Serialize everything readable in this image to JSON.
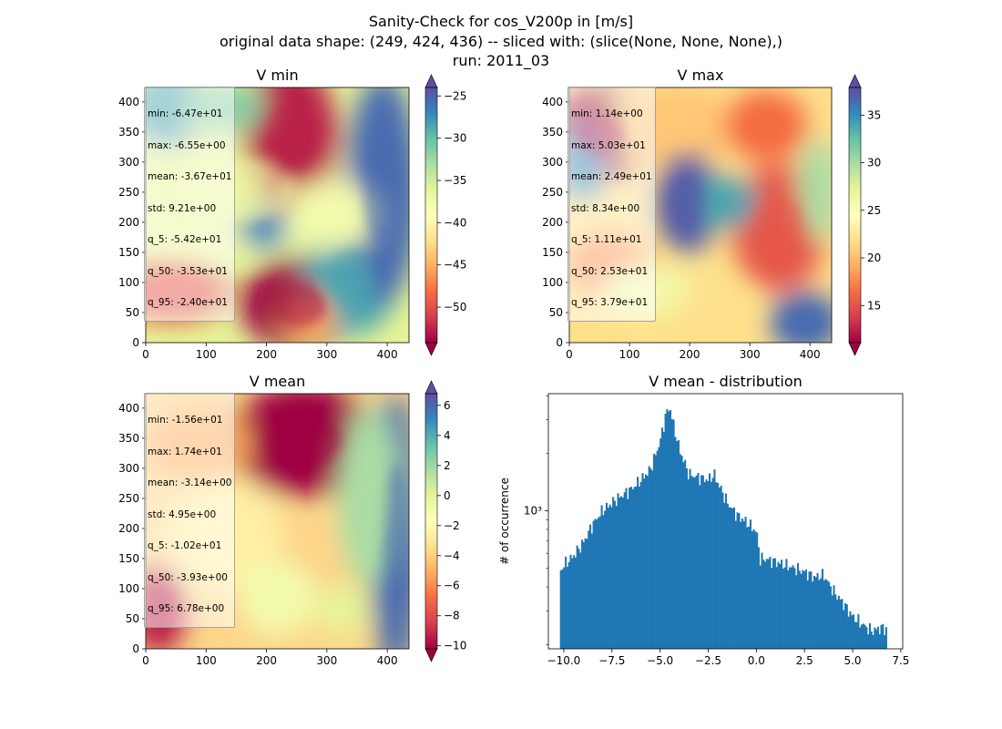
{
  "suptitle": [
    "Sanity-Check for cos_V200p in [m/s]",
    "original data shape: (249, 424, 436) -- sliced with: (slice(None, None, None),)",
    "run: 2011_03"
  ],
  "chart_data": [
    {
      "type": "heatmap",
      "title": "V min",
      "xlim": [
        0,
        436
      ],
      "ylim": [
        0,
        424
      ],
      "xticks": [
        0,
        100,
        200,
        300,
        400
      ],
      "yticks": [
        0,
        50,
        100,
        150,
        200,
        250,
        300,
        350,
        400
      ],
      "colormap": "Spectral",
      "colorbar": {
        "range": [
          -54.2,
          -24.0
        ],
        "ticks": [
          -50,
          -45,
          -40,
          -35,
          -30,
          -25
        ],
        "extend": "both"
      },
      "stats": [
        "min: -6.47e+01",
        "max: -6.55e+00",
        "mean: -3.67e+01",
        "std: 9.21e+00",
        "q_5: -5.42e+01",
        "q_50: -3.53e+01",
        "q_95: -2.40e+01"
      ]
    },
    {
      "type": "heatmap",
      "title": "V max",
      "xlim": [
        0,
        436
      ],
      "ylim": [
        0,
        424
      ],
      "xticks": [
        0,
        100,
        200,
        300,
        400
      ],
      "yticks": [
        0,
        50,
        100,
        150,
        200,
        250,
        300,
        350,
        400
      ],
      "colormap": "Spectral",
      "colorbar": {
        "range": [
          11.1,
          37.9
        ],
        "ticks": [
          15,
          20,
          25,
          30,
          35
        ],
        "extend": "both"
      },
      "stats": [
        "min: 1.14e+00",
        "max: 5.03e+01",
        "mean: 2.49e+01",
        "std: 8.34e+00",
        "q_5: 1.11e+01",
        "q_50: 2.53e+01",
        "q_95: 3.79e+01"
      ]
    },
    {
      "type": "heatmap",
      "title": "V mean",
      "xlim": [
        0,
        436
      ],
      "ylim": [
        0,
        424
      ],
      "xticks": [
        0,
        100,
        200,
        300,
        400
      ],
      "yticks": [
        0,
        50,
        100,
        150,
        200,
        250,
        300,
        350,
        400
      ],
      "colormap": "Spectral",
      "colorbar": {
        "range": [
          -10.2,
          6.78
        ],
        "ticks": [
          -10,
          -8,
          -6,
          -4,
          -2,
          0,
          2,
          4,
          6
        ],
        "extend": "both"
      },
      "stats": [
        "min: -1.56e+01",
        "max: 1.74e+01",
        "mean: -3.14e+00",
        "std: 4.95e+00",
        "q_5: -1.02e+01",
        "q_50: -3.93e+00",
        "q_95: 6.78e+00"
      ]
    },
    {
      "type": "bar",
      "title": "V mean - distribution",
      "ylabel": "# of occurrence",
      "xlim": [
        -10.8,
        7.6
      ],
      "ylim": [
        190,
        4100
      ],
      "yscale": "log",
      "xticks": [
        -10.0,
        -7.5,
        -5.0,
        -2.5,
        0.0,
        2.5,
        5.0,
        7.5
      ],
      "xtick_labels": [
        "−10.0",
        "−7.5",
        "−5.0",
        "−2.5",
        "0.0",
        "2.5",
        "5.0",
        "7.5"
      ],
      "ytick_labels": [
        {
          "value": 1000,
          "label": "10³"
        }
      ],
      "color": "#1f77b4",
      "profile_x": [
        -10.2,
        -10.0,
        -9.5,
        -9.0,
        -8.5,
        -8.0,
        -7.5,
        -7.0,
        -6.5,
        -6.0,
        -5.5,
        -5.0,
        -4.7,
        -4.5,
        -4.3,
        -4.0,
        -3.5,
        -3.0,
        -2.5,
        -2.2,
        -2.0,
        -1.5,
        -1.0,
        -0.5,
        0.0,
        0.2,
        0.5,
        1.0,
        1.5,
        2.0,
        2.5,
        3.0,
        3.5,
        4.0,
        4.5,
        5.0,
        5.5,
        6.0,
        6.5,
        6.78
      ],
      "profile_y": [
        480,
        520,
        580,
        680,
        850,
        1000,
        1100,
        1200,
        1300,
        1450,
        1650,
        2300,
        3200,
        3500,
        2800,
        2100,
        1550,
        1500,
        1450,
        1550,
        1400,
        1100,
        950,
        870,
        780,
        560,
        560,
        540,
        520,
        500,
        480,
        450,
        460,
        380,
        330,
        280,
        255,
        235,
        245,
        240
      ]
    }
  ]
}
